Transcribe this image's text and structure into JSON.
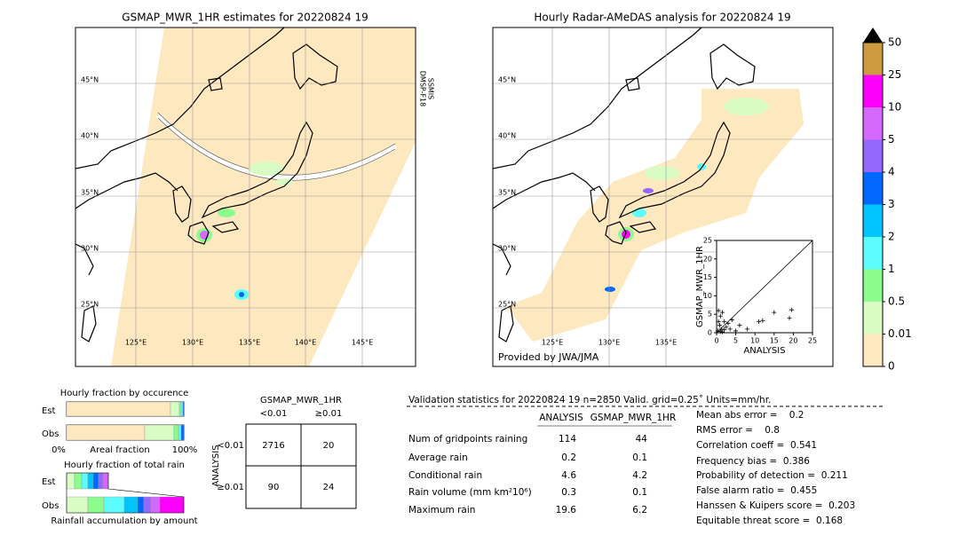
{
  "left_map": {
    "title": "GSMAP_MWR_1HR estimates for 20220824 19",
    "lat_labels": [
      "45°N",
      "40°N",
      "35°N",
      "30°N",
      "25°N"
    ],
    "lon_labels": [
      "125°E",
      "130°E",
      "135°E",
      "140°E",
      "145°E"
    ],
    "sensor_labels": [
      "DMSP-F18",
      "SSMIS"
    ]
  },
  "right_map": {
    "title": "Hourly Radar-AMeDAS analysis for 20220824 19",
    "lat_labels": [
      "45°N",
      "40°N",
      "35°N",
      "30°N",
      "25°N"
    ],
    "lon_labels": [
      "125°E",
      "130°E",
      "135°E"
    ],
    "credit": "Provided by JWA/JMA"
  },
  "colorbar": {
    "labels": [
      "0",
      "0.01",
      "0.5",
      "1",
      "2",
      "3",
      "4",
      "5",
      "10",
      "25",
      "50"
    ],
    "colors": [
      "#fee8bf",
      "#d8fcc4",
      "#8cfc8c",
      "#5cfcfc",
      "#00c4fc",
      "#0068fc",
      "#9468fc",
      "#d468fc",
      "#fc00fc",
      "#cc9a40"
    ],
    "extend_color": "#000000"
  },
  "chart_data": {
    "type": "scatter",
    "xlabel": "ANALYSIS",
    "ylabel": "GSMAP_MWR_1HR",
    "xlim": [
      0,
      25
    ],
    "ylim": [
      0,
      25
    ],
    "xticks": [
      0,
      5,
      10,
      15,
      20,
      25
    ],
    "yticks": [
      0,
      5,
      10,
      15,
      20,
      25
    ],
    "x": [
      0.3,
      0.5,
      0.8,
      1,
      1.2,
      1.5,
      2,
      2.5,
      3,
      0.5,
      1,
      1.5,
      2,
      3.5,
      4,
      5,
      6,
      8,
      11,
      12,
      15,
      19,
      19.6
    ],
    "y": [
      0.5,
      3,
      2,
      4.5,
      1,
      5.5,
      3,
      1.5,
      2.5,
      6,
      0.3,
      0.2,
      0.8,
      1,
      3.5,
      0.5,
      2,
      1,
      3,
      3.3,
      5.5,
      4,
      6.2
    ],
    "color": "#000000"
  },
  "occurrence": {
    "title": "Hourly fraction by occurence",
    "rows": [
      "Est",
      "Obs"
    ],
    "axis_labels": [
      "0%",
      "Areal fraction",
      "100%"
    ]
  },
  "total_rain": {
    "title": "Hourly fraction of total rain",
    "rows": [
      "Est",
      "Obs"
    ],
    "xlabel": "Rainfall accumulation by amount"
  },
  "contingency": {
    "title": "GSMAP_MWR_1HR",
    "col_headers": [
      "<0.01",
      "≥0.01"
    ],
    "row_label": "ANALYSIS",
    "row_headers": [
      "<0.01",
      "≥0.01"
    ],
    "cells": [
      [
        "2716",
        "20"
      ],
      [
        "90",
        "24"
      ]
    ]
  },
  "validation": {
    "header": "Validation statistics for 20220824 19  n=2850 Valid. grid=0.25˚ Units=mm/hr.",
    "columns": [
      "ANALYSIS",
      "GSMAP_MWR_1HR"
    ],
    "rows": [
      [
        "Num of gridpoints raining",
        "114",
        "44"
      ],
      [
        "Average rain",
        "0.2",
        "0.1"
      ],
      [
        "Conditional rain",
        "4.6",
        "4.2"
      ],
      [
        "Rain volume (mm km²10⁶)",
        "0.3",
        "0.1"
      ],
      [
        "Maximum rain",
        "19.6",
        "6.2"
      ]
    ]
  },
  "scores": [
    "Mean abs error =    0.2",
    "RMS error =    0.8",
    "Correlation coeff =  0.541",
    "Frequency bias =  0.386",
    "Probability of detection =  0.211",
    "False alarm ratio =  0.455",
    "Hanssen & Kuipers score =  0.203",
    "Equitable threat score =  0.168"
  ]
}
